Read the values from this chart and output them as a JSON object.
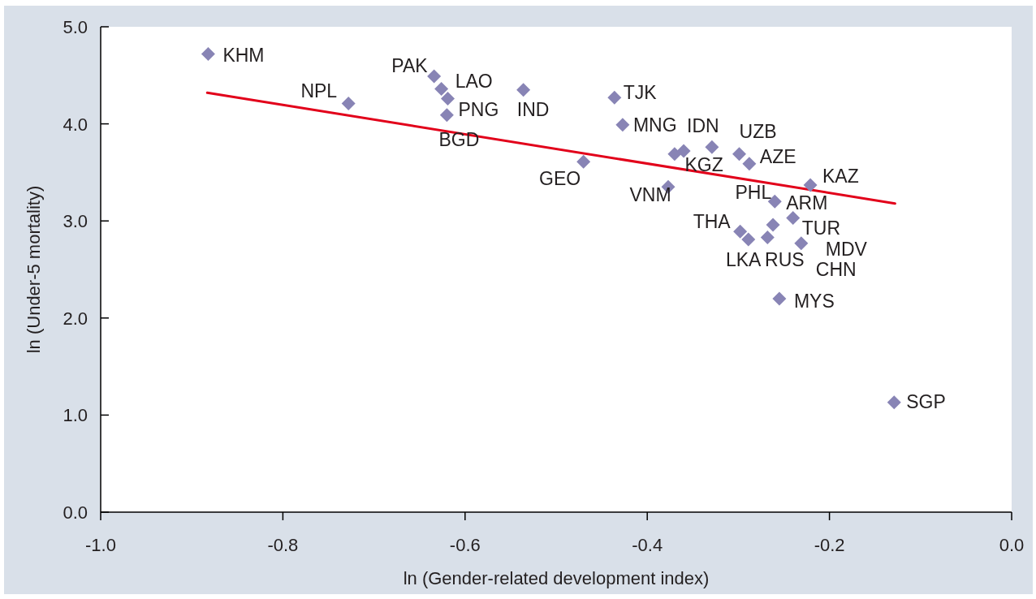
{
  "chart_data": {
    "type": "scatter",
    "xlabel": "ln (Gender-related development index)",
    "ylabel": "ln (Under-5 mortality)",
    "xlim": [
      -1,
      0
    ],
    "xticks": [
      {
        "value": -1,
        "label": "-1.0"
      },
      {
        "value": -0.8,
        "label": "-0.8"
      },
      {
        "value": -0.6,
        "label": "-0.6"
      },
      {
        "value": -0.4,
        "label": "-0.4"
      },
      {
        "value": -0.2,
        "label": "-0.2"
      },
      {
        "value": 0,
        "label": "0.0"
      }
    ],
    "ylim": [
      0,
      5
    ],
    "yticks": [
      {
        "value": 0,
        "label": "0.0"
      },
      {
        "value": 1,
        "label": "1.0"
      },
      {
        "value": 2,
        "label": "2.0"
      },
      {
        "value": 3,
        "label": "3.0"
      },
      {
        "value": 4,
        "label": "4.0"
      },
      {
        "value": 5,
        "label": "5.0"
      }
    ],
    "marker": "diamond",
    "series": [
      {
        "type": "scatter",
        "color": "#8884b5",
        "x": [
          -0.882,
          -0.728,
          -0.634,
          -0.626,
          -0.619,
          -0.62,
          -0.536,
          -0.436,
          -0.427,
          -0.47,
          -0.37,
          -0.36,
          -0.329,
          -0.299,
          -0.288,
          -0.377,
          -0.221,
          -0.26,
          -0.24,
          -0.262,
          -0.298,
          -0.289,
          -0.268,
          -0.231,
          -0.255,
          -0.129
        ],
        "values": [
          4.72,
          4.21,
          4.49,
          4.36,
          4.26,
          4.09,
          4.35,
          4.27,
          3.99,
          3.61,
          3.69,
          3.72,
          3.76,
          3.69,
          3.59,
          3.35,
          3.37,
          3.2,
          3.03,
          2.96,
          2.89,
          2.81,
          2.83,
          2.77,
          2.2,
          1.13
        ]
      },
      {
        "type": "line",
        "color": "#e2001a",
        "marker": "none",
        "x": [
          -0.883,
          -0.128
        ],
        "values": [
          4.32,
          3.18
        ]
      }
    ],
    "annotations": [
      {
        "text": "KHM",
        "x": -0.882,
        "y": 4.72
      },
      {
        "text": "NPL",
        "x": -0.728,
        "y": 4.21
      },
      {
        "text": "PAK",
        "x": -0.634,
        "y": 4.49
      },
      {
        "text": "LAO",
        "x": -0.626,
        "y": 4.36
      },
      {
        "text": "PNG",
        "x": -0.619,
        "y": 4.26
      },
      {
        "text": "BGD",
        "x": -0.62,
        "y": 4.09
      },
      {
        "text": "IND",
        "x": -0.536,
        "y": 4.35
      },
      {
        "text": "TJK",
        "x": -0.436,
        "y": 4.27
      },
      {
        "text": "MNG",
        "x": -0.427,
        "y": 3.99
      },
      {
        "text": "IDN",
        "x": -0.329,
        "y": 3.76
      },
      {
        "text": "UZB",
        "x": -0.299,
        "y": 3.69
      },
      {
        "text": "AZE",
        "x": -0.288,
        "y": 3.59
      },
      {
        "text": "GEO",
        "x": -0.47,
        "y": 3.61
      },
      {
        "text": "KGZ",
        "x": -0.36,
        "y": 3.72
      },
      {
        "text": "VNM",
        "x": -0.377,
        "y": 3.35
      },
      {
        "text": "KAZ",
        "x": -0.221,
        "y": 3.37
      },
      {
        "text": "PHL",
        "x": -0.26,
        "y": 3.2
      },
      {
        "text": "ARM",
        "x": -0.26,
        "y": 3.2
      },
      {
        "text": "THA",
        "x": -0.298,
        "y": 2.89
      },
      {
        "text": "TUR",
        "x": -0.24,
        "y": 3.03
      },
      {
        "text": "LKA",
        "x": -0.289,
        "y": 2.81
      },
      {
        "text": "RUS",
        "x": -0.268,
        "y": 2.83
      },
      {
        "text": "MDV",
        "x": -0.231,
        "y": 2.77
      },
      {
        "text": "CHN",
        "x": -0.231,
        "y": 2.77
      },
      {
        "text": "MYS",
        "x": -0.255,
        "y": 2.2
      },
      {
        "text": "SGP",
        "x": -0.129,
        "y": 1.13
      }
    ]
  }
}
